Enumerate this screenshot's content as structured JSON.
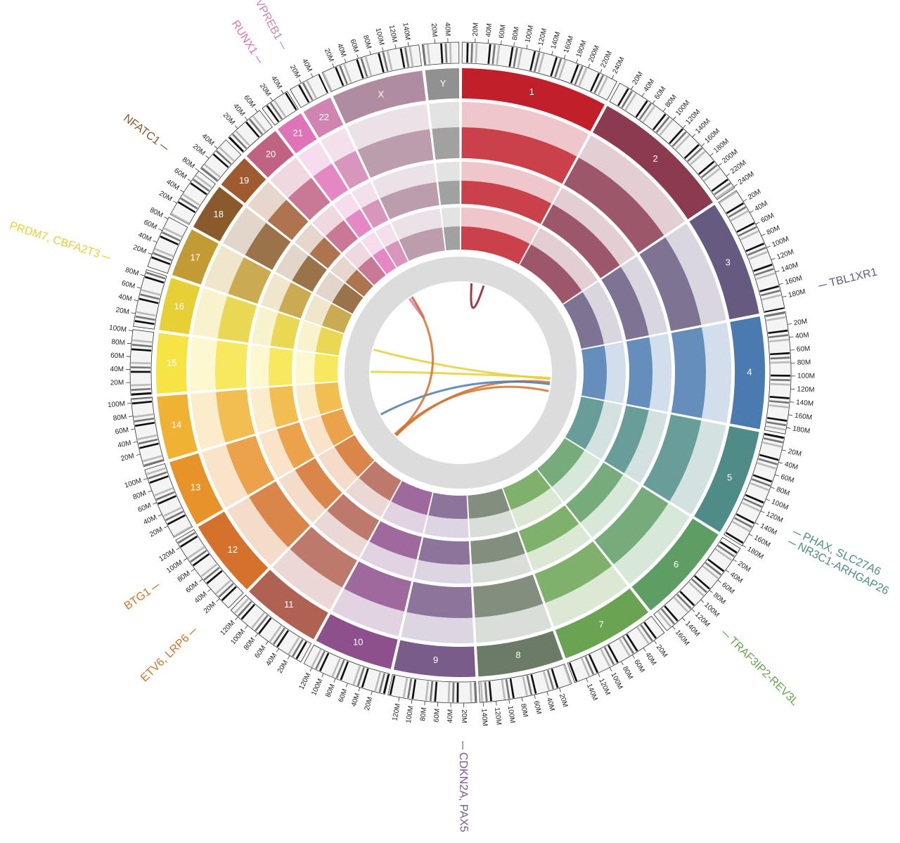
{
  "chart_data": {
    "type": "circos",
    "chromosomes": [
      {
        "name": "1",
        "length": 249,
        "color": "#c1202b",
        "ticks": [
          {
            "value": 20,
            "label": "20M"
          },
          {
            "value": 40,
            "label": "40M"
          },
          {
            "value": 60,
            "label": "60M"
          },
          {
            "value": 80,
            "label": "80M"
          },
          {
            "value": 100,
            "label": "100M"
          },
          {
            "value": 120,
            "label": "120M"
          },
          {
            "value": 140,
            "label": "140M"
          },
          {
            "value": 160,
            "label": "160M"
          },
          {
            "value": 180,
            "label": "180M"
          },
          {
            "value": 200,
            "label": "200M"
          },
          {
            "value": 220,
            "label": "220M"
          },
          {
            "value": 240,
            "label": "240M"
          }
        ]
      },
      {
        "name": "2",
        "length": 242,
        "color": "#8c3a50",
        "ticks": [
          {
            "value": 20,
            "label": "20M"
          },
          {
            "value": 40,
            "label": "40M"
          },
          {
            "value": 60,
            "label": "60M"
          },
          {
            "value": 80,
            "label": "80M"
          },
          {
            "value": 100,
            "label": "100M"
          },
          {
            "value": 120,
            "label": "120M"
          },
          {
            "value": 140,
            "label": "140M"
          },
          {
            "value": 160,
            "label": "160M"
          },
          {
            "value": 180,
            "label": "180M"
          },
          {
            "value": 200,
            "label": "200M"
          },
          {
            "value": 220,
            "label": "220M"
          },
          {
            "value": 240,
            "label": "240M"
          }
        ]
      },
      {
        "name": "3",
        "length": 198,
        "color": "#675a80",
        "ticks": [
          {
            "value": 20,
            "label": "20M"
          },
          {
            "value": 40,
            "label": "40M"
          },
          {
            "value": 60,
            "label": "60M"
          },
          {
            "value": 80,
            "label": "80M"
          },
          {
            "value": 100,
            "label": "100M"
          },
          {
            "value": 120,
            "label": "120M"
          },
          {
            "value": 140,
            "label": "140M"
          },
          {
            "value": 160,
            "label": "160M"
          },
          {
            "value": 180,
            "label": "180M"
          }
        ]
      },
      {
        "name": "4",
        "length": 190,
        "color": "#4b7ab0",
        "ticks": [
          {
            "value": 20,
            "label": "20M"
          },
          {
            "value": 40,
            "label": "40M"
          },
          {
            "value": 60,
            "label": "60M"
          },
          {
            "value": 80,
            "label": "80M"
          },
          {
            "value": 100,
            "label": "100M"
          },
          {
            "value": 120,
            "label": "120M"
          },
          {
            "value": 140,
            "label": "140M"
          },
          {
            "value": 160,
            "label": "160M"
          },
          {
            "value": 180,
            "label": "180M"
          }
        ]
      },
      {
        "name": "5",
        "length": 181,
        "color": "#4f8c88",
        "ticks": [
          {
            "value": 20,
            "label": "20M"
          },
          {
            "value": 40,
            "label": "40M"
          },
          {
            "value": 60,
            "label": "60M"
          },
          {
            "value": 80,
            "label": "80M"
          },
          {
            "value": 100,
            "label": "100M"
          },
          {
            "value": 120,
            "label": "120M"
          },
          {
            "value": 140,
            "label": "140M"
          },
          {
            "value": 160,
            "label": "160M"
          },
          {
            "value": 180,
            "label": "180M"
          }
        ]
      },
      {
        "name": "6",
        "length": 171,
        "color": "#5e9e64",
        "ticks": [
          {
            "value": 20,
            "label": "20M"
          },
          {
            "value": 40,
            "label": "40M"
          },
          {
            "value": 60,
            "label": "60M"
          },
          {
            "value": 80,
            "label": "80M"
          },
          {
            "value": 100,
            "label": "100M"
          },
          {
            "value": 120,
            "label": "120M"
          },
          {
            "value": 140,
            "label": "140M"
          },
          {
            "value": 160,
            "label": "160M"
          }
        ]
      },
      {
        "name": "7",
        "length": 159,
        "color": "#6aa352",
        "ticks": [
          {
            "value": 20,
            "label": "20M"
          },
          {
            "value": 40,
            "label": "40M"
          },
          {
            "value": 60,
            "label": "60M"
          },
          {
            "value": 80,
            "label": "80M"
          },
          {
            "value": 100,
            "label": "100M"
          },
          {
            "value": 120,
            "label": "120M"
          },
          {
            "value": 140,
            "label": "140M"
          }
        ]
      },
      {
        "name": "8",
        "length": 145,
        "color": "#6c7b68",
        "ticks": [
          {
            "value": 20,
            "label": "20M"
          },
          {
            "value": 40,
            "label": "40M"
          },
          {
            "value": 60,
            "label": "60M"
          },
          {
            "value": 80,
            "label": "80M"
          },
          {
            "value": 100,
            "label": "100M"
          },
          {
            "value": 120,
            "label": "120M"
          },
          {
            "value": 140,
            "label": "140M"
          }
        ]
      },
      {
        "name": "9",
        "length": 138,
        "color": "#795c8a",
        "ticks": [
          {
            "value": 20,
            "label": "20M"
          },
          {
            "value": 40,
            "label": "40M"
          },
          {
            "value": 60,
            "label": "60M"
          },
          {
            "value": 80,
            "label": "80M"
          },
          {
            "value": 100,
            "label": "100M"
          },
          {
            "value": 120,
            "label": "120M"
          }
        ]
      },
      {
        "name": "10",
        "length": 134,
        "color": "#8d508c",
        "ticks": [
          {
            "value": 20,
            "label": "20M"
          },
          {
            "value": 40,
            "label": "40M"
          },
          {
            "value": 60,
            "label": "60M"
          },
          {
            "value": 80,
            "label": "80M"
          },
          {
            "value": 100,
            "label": "100M"
          },
          {
            "value": 120,
            "label": "120M"
          }
        ]
      },
      {
        "name": "11",
        "length": 135,
        "color": "#b06252",
        "ticks": [
          {
            "value": 20,
            "label": "20M"
          },
          {
            "value": 40,
            "label": "40M"
          },
          {
            "value": 60,
            "label": "60M"
          },
          {
            "value": 80,
            "label": "80M"
          },
          {
            "value": 100,
            "label": "100M"
          },
          {
            "value": 120,
            "label": "120M"
          }
        ]
      },
      {
        "name": "12",
        "length": 133,
        "color": "#d4712c",
        "ticks": [
          {
            "value": 20,
            "label": "20M"
          },
          {
            "value": 40,
            "label": "40M"
          },
          {
            "value": 60,
            "label": "60M"
          },
          {
            "value": 80,
            "label": "80M"
          },
          {
            "value": 100,
            "label": "100M"
          },
          {
            "value": 120,
            "label": "120M"
          }
        ]
      },
      {
        "name": "13",
        "length": 114,
        "color": "#e8922a",
        "ticks": [
          {
            "value": 20,
            "label": "20M"
          },
          {
            "value": 40,
            "label": "40M"
          },
          {
            "value": 60,
            "label": "60M"
          },
          {
            "value": 80,
            "label": "80M"
          },
          {
            "value": 100,
            "label": "100M"
          }
        ]
      },
      {
        "name": "14",
        "length": 107,
        "color": "#f0b232",
        "ticks": [
          {
            "value": 20,
            "label": "20M"
          },
          {
            "value": 40,
            "label": "40M"
          },
          {
            "value": 60,
            "label": "60M"
          },
          {
            "value": 80,
            "label": "80M"
          },
          {
            "value": 100,
            "label": "100M"
          }
        ]
      },
      {
        "name": "15",
        "length": 102,
        "color": "#f6e444",
        "ticks": [
          {
            "value": 20,
            "label": "20M"
          },
          {
            "value": 40,
            "label": "40M"
          },
          {
            "value": 60,
            "label": "60M"
          },
          {
            "value": 80,
            "label": "80M"
          },
          {
            "value": 100,
            "label": "100M"
          }
        ]
      },
      {
        "name": "16",
        "length": 90,
        "color": "#e6d036",
        "ticks": [
          {
            "value": 20,
            "label": "20M"
          },
          {
            "value": 40,
            "label": "40M"
          },
          {
            "value": 60,
            "label": "60M"
          },
          {
            "value": 80,
            "label": "80M"
          }
        ]
      },
      {
        "name": "17",
        "length": 83,
        "color": "#c29c32",
        "ticks": [
          {
            "value": 20,
            "label": "20M"
          },
          {
            "value": 40,
            "label": "40M"
          },
          {
            "value": 60,
            "label": "60M"
          },
          {
            "value": 80,
            "label": "80M"
          }
        ]
      },
      {
        "name": "18",
        "length": 80,
        "color": "#8a5a2a",
        "ticks": [
          {
            "value": 20,
            "label": "20M"
          },
          {
            "value": 40,
            "label": "40M"
          },
          {
            "value": 60,
            "label": "60M"
          },
          {
            "value": 80,
            "label": "80M"
          }
        ]
      },
      {
        "name": "19",
        "length": 59,
        "color": "#a05a30",
        "ticks": [
          {
            "value": 20,
            "label": "20M"
          },
          {
            "value": 40,
            "label": "40M"
          }
        ]
      },
      {
        "name": "20",
        "length": 64,
        "color": "#c06282",
        "ticks": [
          {
            "value": 20,
            "label": "20M"
          },
          {
            "value": 40,
            "label": "40M"
          },
          {
            "value": 60,
            "label": "60M"
          }
        ]
      },
      {
        "name": "21",
        "length": 47,
        "color": "#e072b8",
        "ticks": [
          {
            "value": 20,
            "label": "20M"
          },
          {
            "value": 40,
            "label": "40M"
          }
        ]
      },
      {
        "name": "22",
        "length": 51,
        "color": "#d184b2",
        "ticks": [
          {
            "value": 20,
            "label": "20M"
          },
          {
            "value": 40,
            "label": "40M"
          }
        ]
      },
      {
        "name": "X",
        "length": 156,
        "color": "#b08ca0",
        "ticks": [
          {
            "value": 20,
            "label": "20M"
          },
          {
            "value": 40,
            "label": "40M"
          },
          {
            "value": 60,
            "label": "60M"
          },
          {
            "value": 80,
            "label": "80M"
          },
          {
            "value": 100,
            "label": "100M"
          },
          {
            "value": 120,
            "label": "120M"
          },
          {
            "value": 140,
            "label": "140M"
          }
        ]
      },
      {
        "name": "Y",
        "length": 57,
        "color": "#919191",
        "ticks": [
          {
            "value": 20,
            "label": "20M"
          },
          {
            "value": 40,
            "label": "40M"
          }
        ]
      }
    ],
    "genes": [
      {
        "label": "TBL1XR1",
        "chromosome": 2,
        "position": 177,
        "color": "#675a80"
      },
      {
        "label": "PHAX, SLC27A6",
        "chromosome": 4,
        "position": 127,
        "color": "#4f8c88"
      },
      {
        "label": "NR3C1-ARHGAP26",
        "chromosome": 4,
        "position": 142,
        "color": "#4f8c88"
      },
      {
        "label": "TRAF3IP2-REV3L",
        "chromosome": 5,
        "position": 111,
        "color": "#6aa352"
      },
      {
        "label": "CDKN2A, PAX5",
        "chromosome": 8,
        "position": 22,
        "color": "#795c8a"
      },
      {
        "label": "ETV6, LRP6",
        "chromosome": 11,
        "position": 12,
        "color": "#d4712c"
      },
      {
        "label": "BTG1",
        "chromosome": 11,
        "position": 92,
        "color": "#d4712c"
      },
      {
        "label": "PRDM7, CBFA2T3",
        "chromosome": 15,
        "position": 89,
        "color": "#e6d036"
      },
      {
        "label": "NFATC1",
        "chromosome": 17,
        "position": 77,
        "color": "#8a5a2a"
      },
      {
        "label": "RUNX1",
        "chromosome": 20,
        "position": 36,
        "color": "#e072b8"
      },
      {
        "label": "VPREB1",
        "chromosome": 21,
        "position": 22,
        "color": "#d184b2"
      }
    ],
    "links": [
      {
        "from": [
          0,
          60
        ],
        "to": [
          0,
          130
        ],
        "color": "#8c1a2c"
      },
      {
        "from": [
          15,
          60
        ],
        "to": [
          3,
          130
        ],
        "color": "#e6d036"
      },
      {
        "from": [
          14,
          40
        ],
        "to": [
          3,
          125
        ],
        "color": "#e6d036"
      },
      {
        "from": [
          11,
          20
        ],
        "to": [
          4,
          5
        ],
        "color": "#d4712c"
      },
      {
        "from": [
          11,
          10
        ],
        "to": [
          3,
          150
        ],
        "color": "#d4712c"
      },
      {
        "from": [
          12,
          20
        ],
        "to": [
          3,
          160
        ],
        "color": "#4b7ab0"
      },
      {
        "from": [
          20,
          36
        ],
        "to": [
          20,
          20
        ],
        "color": "#e072b8"
      },
      {
        "from": [
          20,
          38
        ],
        "to": [
          11,
          12
        ],
        "color": "#d4712c"
      }
    ]
  }
}
